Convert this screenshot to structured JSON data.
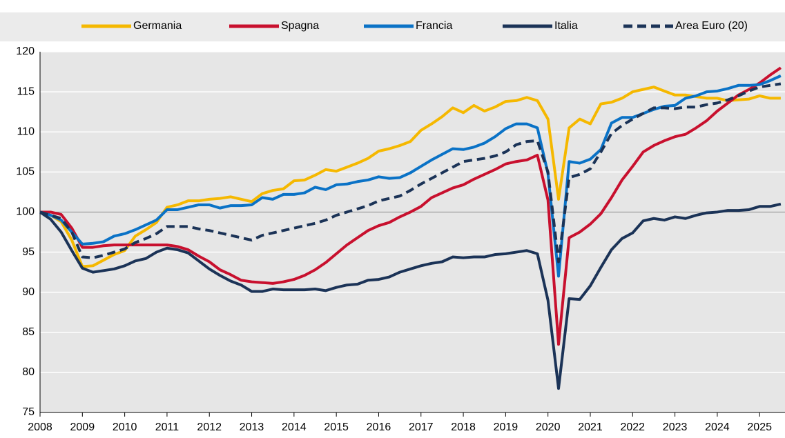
{
  "chart_data": {
    "type": "line",
    "x": [
      2008,
      2008.25,
      2008.5,
      2008.75,
      2009,
      2009.25,
      2009.5,
      2009.75,
      2010,
      2010.25,
      2010.5,
      2010.75,
      2011,
      2011.25,
      2011.5,
      2011.75,
      2012,
      2012.25,
      2012.5,
      2012.75,
      2013,
      2013.25,
      2013.5,
      2013.75,
      2014,
      2014.25,
      2014.5,
      2014.75,
      2015,
      2015.25,
      2015.5,
      2015.75,
      2016,
      2016.25,
      2016.5,
      2016.75,
      2017,
      2017.25,
      2017.5,
      2017.75,
      2018,
      2018.25,
      2018.5,
      2018.75,
      2019,
      2019.25,
      2019.5,
      2019.75,
      2020,
      2020.25,
      2020.5,
      2020.75,
      2021,
      2021.25,
      2021.5,
      2021.75,
      2022,
      2022.25,
      2022.5,
      2022.75,
      2023,
      2023.25,
      2023.5,
      2023.75,
      2024,
      2024.25,
      2024.5,
      2024.75,
      2025,
      2025.25,
      2025.5
    ],
    "series": [
      {
        "name": "Germania",
        "color": "#f5b800",
        "dashed": false,
        "values": [
          100,
          99.6,
          98.8,
          96.5,
          93.2,
          93.3,
          94.0,
          94.7,
          95.2,
          97.0,
          97.8,
          98.7,
          100.6,
          100.9,
          101.4,
          101.4,
          101.6,
          101.7,
          101.9,
          101.6,
          101.3,
          102.3,
          102.7,
          102.9,
          103.9,
          104.0,
          104.6,
          105.3,
          105.1,
          105.6,
          106.1,
          106.7,
          107.6,
          107.9,
          108.3,
          108.8,
          110.2,
          111.0,
          111.9,
          113.0,
          112.4,
          113.3,
          112.6,
          113.1,
          113.8,
          113.9,
          114.3,
          113.9,
          111.6,
          101.6,
          110.5,
          111.6,
          111.0,
          113.5,
          113.7,
          114.2,
          115.0,
          115.3,
          115.6,
          115.1,
          114.6,
          114.6,
          114.4,
          114.2,
          114.2,
          113.9,
          114.0,
          114.1,
          114.5,
          114.2,
          114.2
        ]
      },
      {
        "name": "Spagna",
        "color": "#c8102e",
        "dashed": false,
        "values": [
          100,
          100,
          99.7,
          98.0,
          95.6,
          95.6,
          95.8,
          95.9,
          95.9,
          95.9,
          95.9,
          95.9,
          95.9,
          95.7,
          95.3,
          94.5,
          93.8,
          92.8,
          92.2,
          91.5,
          91.3,
          91.2,
          91.1,
          91.3,
          91.6,
          92.1,
          92.8,
          93.7,
          94.8,
          95.9,
          96.8,
          97.7,
          98.3,
          98.7,
          99.4,
          100.0,
          100.7,
          101.8,
          102.4,
          103.0,
          103.4,
          104.1,
          104.7,
          105.3,
          106.0,
          106.3,
          106.5,
          107.1,
          101.5,
          83.5,
          96.8,
          97.5,
          98.5,
          99.8,
          101.8,
          104.0,
          105.7,
          107.5,
          108.3,
          108.9,
          109.4,
          109.7,
          110.5,
          111.4,
          112.6,
          113.6,
          114.6,
          115.3,
          116.1,
          117.1,
          118.0
        ]
      },
      {
        "name": "Francia",
        "color": "#0a72c6",
        "dashed": false,
        "values": [
          100,
          99.6,
          99.0,
          97.5,
          96.0,
          96.1,
          96.3,
          97.0,
          97.3,
          97.8,
          98.4,
          99.0,
          100.3,
          100.3,
          100.6,
          100.9,
          100.9,
          100.5,
          100.8,
          100.8,
          100.9,
          101.8,
          101.6,
          102.2,
          102.2,
          102.4,
          103.1,
          102.8,
          103.4,
          103.5,
          103.8,
          104.0,
          104.4,
          104.2,
          104.3,
          104.9,
          105.7,
          106.5,
          107.2,
          107.9,
          107.8,
          108.1,
          108.6,
          109.4,
          110.4,
          111.0,
          111.0,
          110.5,
          104.8,
          92.0,
          106.3,
          106.1,
          106.6,
          107.8,
          111.1,
          111.8,
          111.8,
          112.3,
          112.8,
          113.2,
          113.3,
          114.2,
          114.5,
          115.0,
          115.1,
          115.4,
          115.8,
          115.8,
          115.9,
          116.4,
          117.0
        ]
      },
      {
        "name": "Italia",
        "color": "#1b3357",
        "dashed": false,
        "values": [
          100,
          99.1,
          97.5,
          95.2,
          93.0,
          92.5,
          92.7,
          92.9,
          93.3,
          93.9,
          94.2,
          95.0,
          95.5,
          95.3,
          94.9,
          93.9,
          92.9,
          92.1,
          91.4,
          90.9,
          90.1,
          90.1,
          90.4,
          90.3,
          90.3,
          90.3,
          90.4,
          90.2,
          90.6,
          90.9,
          91.0,
          91.5,
          91.6,
          91.9,
          92.5,
          92.9,
          93.3,
          93.6,
          93.8,
          94.4,
          94.3,
          94.4,
          94.4,
          94.7,
          94.8,
          95.0,
          95.2,
          94.8,
          89.0,
          78.0,
          89.2,
          89.1,
          90.8,
          93.1,
          95.3,
          96.7,
          97.4,
          98.9,
          99.2,
          99.0,
          99.4,
          99.2,
          99.6,
          99.9,
          100.0,
          100.2,
          100.2,
          100.3,
          100.7,
          100.7,
          101.0
        ]
      },
      {
        "name": "Area Euro (20)",
        "color": "#1b3357",
        "dashed": true,
        "values": [
          100,
          99.6,
          99.2,
          97.5,
          94.4,
          94.3,
          94.6,
          95.0,
          95.4,
          96.2,
          96.7,
          97.3,
          98.2,
          98.2,
          98.2,
          97.9,
          97.7,
          97.4,
          97.1,
          96.8,
          96.5,
          97.1,
          97.4,
          97.7,
          98.0,
          98.3,
          98.6,
          99.0,
          99.6,
          100.0,
          100.4,
          100.8,
          101.4,
          101.7,
          102.0,
          102.7,
          103.5,
          104.2,
          104.9,
          105.6,
          106.3,
          106.5,
          106.7,
          107.0,
          107.5,
          108.4,
          108.8,
          108.9,
          105.0,
          93.8,
          104.3,
          104.7,
          105.4,
          107.5,
          109.8,
          110.8,
          111.6,
          112.3,
          113.0,
          113.0,
          112.9,
          113.1,
          113.1,
          113.4,
          113.6,
          114.0,
          114.5,
          115.1,
          115.6,
          115.8,
          116.0
        ]
      }
    ],
    "xlim": [
      2008,
      2025.6
    ],
    "xticks": [
      2008,
      2009,
      2010,
      2011,
      2012,
      2013,
      2014,
      2015,
      2016,
      2017,
      2018,
      2019,
      2020,
      2021,
      2022,
      2023,
      2024,
      2025
    ],
    "ylim": [
      75,
      120
    ],
    "yticks": [
      75,
      80,
      85,
      90,
      95,
      100,
      105,
      110,
      115,
      120
    ],
    "reference_line": 100,
    "grid": true,
    "legend": "top"
  }
}
